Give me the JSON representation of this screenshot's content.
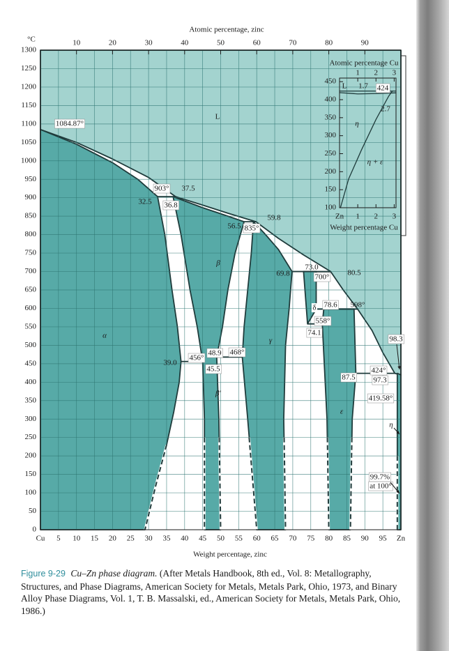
{
  "chart_data": [
    {
      "type": "phase-diagram",
      "x2label": "Atomic percentage, zinc",
      "x2ticks": [
        10,
        20,
        30,
        40,
        50,
        60,
        70,
        80,
        90
      ],
      "x2lim": [
        0,
        100
      ],
      "ylabel": "°C",
      "ylim": [
        0,
        1300
      ],
      "yticks": [
        0,
        50,
        100,
        150,
        200,
        250,
        300,
        350,
        400,
        450,
        500,
        550,
        600,
        650,
        700,
        750,
        800,
        850,
        900,
        950,
        1000,
        1050,
        1100,
        1150,
        1200,
        1250,
        1300
      ],
      "xlim": [
        0,
        100
      ],
      "xticks": [
        {
          "value": 0,
          "label": "Cu"
        },
        5,
        10,
        15,
        20,
        25,
        30,
        35,
        40,
        45,
        50,
        55,
        60,
        65,
        70,
        75,
        80,
        85,
        90,
        95,
        {
          "value": 100,
          "label": "Zn"
        }
      ],
      "xlabel": "Weight percentage, zinc",
      "grid": true,
      "line_color": "#1f3b3b",
      "regions": [
        {
          "color": "#a3d3cf",
          "x": [
            0,
            0,
            100,
            100,
            98.3,
            95,
            92,
            88,
            84,
            80.5,
            73,
            66,
            59.8,
            52,
            45,
            37.5,
            30,
            20,
            10
          ],
          "y": [
            1084.87,
            1300,
            1300,
            419.58,
            424,
            480,
            540,
            598,
            650,
            700,
            745,
            790,
            835,
            858,
            880,
            903,
            955,
            1005,
            1050
          ]
        },
        {
          "color": "#57aaa7",
          "x": [
            0,
            0,
            10,
            20,
            27,
            32.5,
            34.5,
            36.5,
            38,
            39,
            38.5,
            37,
            35,
            32,
            29
          ],
          "y": [
            0,
            1084.87,
            1045,
            995,
            950,
            903,
            800,
            650,
            550,
            456,
            400,
            320,
            230,
            120,
            0
          ]
        },
        {
          "color": "#57aaa7",
          "x": [
            36.8,
            45,
            52,
            56.5,
            54,
            52,
            50.5,
            48.9,
            49.5,
            50,
            45.5,
            45.5,
            45,
            43.5,
            41.5,
            39
          ],
          "y": [
            903,
            873,
            850,
            835,
            750,
            650,
            550,
            468,
            300,
            0,
            0,
            300,
            456,
            550,
            650,
            800
          ]
        },
        {
          "color": "#57aaa7",
          "x": [
            59.1,
            62,
            66,
            69.8,
            69,
            68,
            67.5,
            68,
            60,
            57.5,
            56,
            56.5,
            57.5,
            58.5
          ],
          "y": [
            835,
            805,
            760,
            700,
            600,
            500,
            300,
            0,
            0,
            300,
            468,
            550,
            650,
            750
          ]
        },
        {
          "color": "#57aaa7",
          "x": [
            73,
            76.5,
            76.5,
            74.1
          ],
          "y": [
            700,
            700,
            598,
            558
          ]
        },
        {
          "color": "#57aaa7",
          "x": [
            78.6,
            87,
            87.5,
            86.5,
            86,
            80,
            79.5,
            78.2
          ],
          "y": [
            598,
            598,
            424,
            300,
            0,
            0,
            300,
            558
          ]
        },
        {
          "color": "#57aaa7",
          "x": [
            99,
            100,
            100,
            99
          ],
          "y": [
            424,
            419.58,
            0,
            0
          ]
        }
      ],
      "lines": [
        {
          "x": [
            32.5,
            37.5
          ],
          "y": [
            903,
            903
          ]
        },
        {
          "x": [
            56.5,
            59.8
          ],
          "y": [
            835,
            835
          ]
        },
        {
          "x": [
            69.8,
            80.5
          ],
          "y": [
            700,
            700
          ]
        },
        {
          "x": [
            76.5,
            88
          ],
          "y": [
            598,
            598
          ]
        },
        {
          "x": [
            74.1,
            78.2
          ],
          "y": [
            558,
            558
          ]
        },
        {
          "x": [
            39,
            45
          ],
          "y": [
            456,
            456
          ]
        },
        {
          "x": [
            48.9,
            56
          ],
          "y": [
            468,
            468
          ]
        },
        {
          "x": [
            87.5,
            98.3
          ],
          "y": [
            424,
            424
          ]
        }
      ],
      "dashed": [
        {
          "x": [
            35,
            32,
            29
          ],
          "y": [
            230,
            120,
            0
          ]
        },
        {
          "x": [
            45.5,
            45.5
          ],
          "y": [
            250,
            0
          ]
        },
        {
          "x": [
            49.6,
            50
          ],
          "y": [
            250,
            0
          ]
        },
        {
          "x": [
            57.9,
            60
          ],
          "y": [
            250,
            0
          ]
        },
        {
          "x": [
            67.6,
            68
          ],
          "y": [
            250,
            0
          ]
        },
        {
          "x": [
            79.6,
            80
          ],
          "y": [
            250,
            0
          ]
        },
        {
          "x": [
            86.4,
            86
          ],
          "y": [
            250,
            0
          ]
        },
        {
          "x": [
            99,
            99
          ],
          "y": [
            200,
            0
          ]
        }
      ],
      "annotations": [
        "L",
        "1084.87°",
        "903°",
        "37.5",
        "32.5",
        "36.8",
        "56.5",
        "835°",
        "59.8",
        "β",
        "69.8",
        "73.0",
        "700°",
        "80.5",
        "δ",
        "78.6",
        "598°",
        "558°",
        "74.1",
        "α",
        "γ",
        "98.3",
        "39.0",
        "456°",
        "48.9",
        "468°",
        "45.5",
        "87.5",
        "424°",
        "97.3",
        "419.58°",
        "β′",
        "ε",
        "η",
        "99.7%",
        "at 100°"
      ],
      "figure_label": "Figure 9-29",
      "caption_title": "Cu–Zn phase diagram.",
      "caption": "(After Metals Handbook, 8th ed., Vol. 8: Metallography, Structures, and Phase Diagrams, American Society for Metals, Metals Park, Ohio, 1973, and Binary Alloy Phase Diagrams, Vol. 1, T. B. Massalski, ed., American Society for Metals, Metals Park, Ohio, 1986.)"
    },
    {
      "type": "phase-diagram",
      "x2label": "Atomic percentage Cu",
      "x2ticks": [
        1,
        2,
        3
      ],
      "x2lim": [
        0,
        3.1
      ],
      "ylim": [
        100,
        460
      ],
      "yticks": [
        100,
        150,
        200,
        250,
        300,
        350,
        400,
        450
      ],
      "xlim": [
        0,
        3.1
      ],
      "xticks": [
        {
          "value": 0,
          "label": "Zn"
        },
        1,
        2,
        3
      ],
      "xlabel": "Weight percentage Cu",
      "grid": false,
      "line_color": "#1f3b3b",
      "lines": [
        {
          "x": [
            0,
            3.1
          ],
          "y": [
            424,
            424
          ]
        },
        {
          "x": [
            0,
            1,
            2,
            3.1
          ],
          "y": [
            419.58,
            416,
            417,
            419
          ]
        },
        {
          "x": [
            0.05,
            0.5,
            1.2,
            2,
            2.7,
            2.9
          ],
          "y": [
            100,
            180,
            260,
            345,
            410,
            424
          ]
        }
      ],
      "annotations": [
        "L",
        "1.7",
        "424",
        "2.7",
        "η",
        "η + ε"
      ]
    }
  ]
}
